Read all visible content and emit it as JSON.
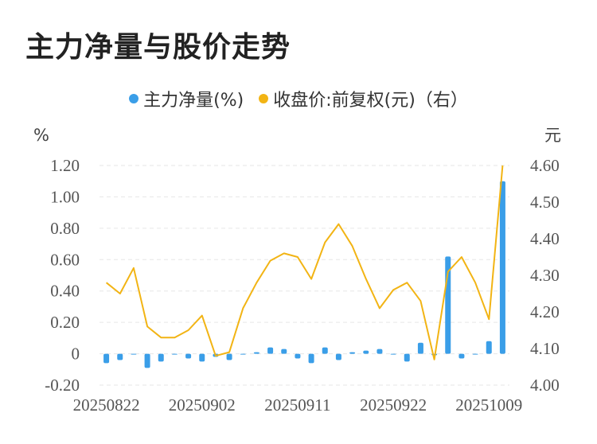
{
  "title": "主力净量与股价走势",
  "colors": {
    "bar": "#3a9ee8",
    "line": "#f2b414",
    "grid": "#e6e6e6"
  },
  "chart_data": {
    "type": "bar+line",
    "series": [
      {
        "name": "主力净量(%)",
        "type": "bar",
        "axis": "left",
        "color": "#3a9ee8",
        "values": [
          -0.06,
          -0.04,
          0.0,
          -0.09,
          -0.05,
          0.0,
          -0.03,
          -0.05,
          -0.02,
          -0.04,
          0.0,
          0.01,
          0.04,
          0.03,
          -0.03,
          -0.06,
          0.04,
          -0.04,
          0.01,
          0.02,
          0.03,
          0.0,
          -0.05,
          0.07,
          -0.01,
          0.62,
          -0.03,
          0.0,
          0.08,
          1.1
        ]
      },
      {
        "name": "收盘价:前复权(元)（右）",
        "type": "line",
        "axis": "right",
        "color": "#f2b414",
        "values": [
          4.28,
          4.25,
          4.32,
          4.16,
          4.13,
          4.13,
          4.15,
          4.19,
          4.08,
          4.09,
          4.21,
          4.28,
          4.34,
          4.36,
          4.35,
          4.29,
          4.39,
          4.44,
          4.38,
          4.29,
          4.21,
          4.26,
          4.28,
          4.23,
          4.07,
          4.31,
          4.35,
          4.28,
          4.18,
          4.6
        ]
      }
    ],
    "x_ticks": [
      "20250822",
      "20250902",
      "20250911",
      "20250922",
      "20251009"
    ],
    "x_tick_index": [
      0,
      7,
      14,
      21,
      28
    ],
    "y_left": {
      "unit": "%",
      "ticks": [
        "1.20",
        "1.00",
        "0.80",
        "0.60",
        "0.40",
        "0.20",
        "0",
        "-0.20"
      ],
      "min": -0.2,
      "max": 1.2
    },
    "y_right": {
      "unit": "元",
      "ticks": [
        "4.60",
        "4.50",
        "4.40",
        "4.30",
        "4.20",
        "4.10",
        "4.00"
      ],
      "min": 4.0,
      "max": 4.6
    },
    "grid": true,
    "legend_position": "top-center"
  }
}
